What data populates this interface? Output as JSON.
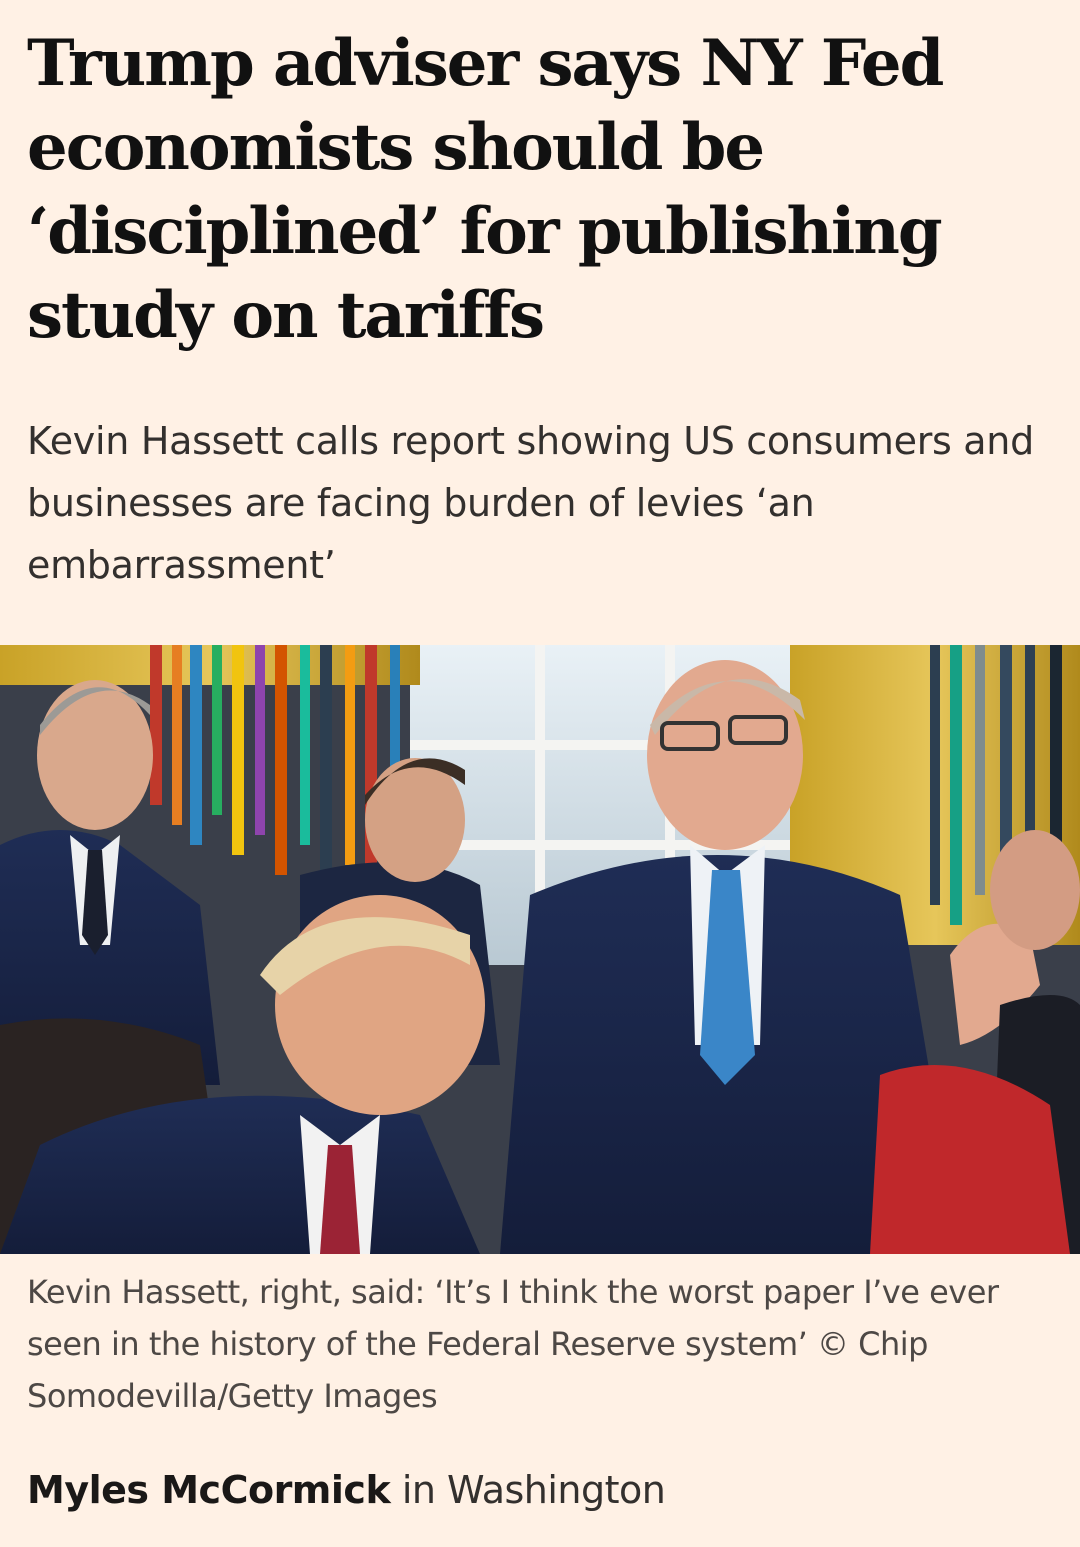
{
  "article": {
    "headline": "Trump adviser says NY Fed economists should be ‘disciplined’ for publishing study on tariffs",
    "standfirst": "Kevin Hassett calls report showing US consumers and businesses are facing burden of levies ‘an embarrassment’",
    "caption": "Kevin Hassett, right, said: ‘It’s I think the worst paper I’ve ever seen in the history of the Federal Reserve system’ © Chip Somodevilla/Getty Images",
    "byline": {
      "author": "Myles McCormick",
      "location": "in Washington"
    }
  },
  "theme": {
    "background": "#fff1e5",
    "headline_color": "#111111",
    "body_color": "#33302e"
  }
}
